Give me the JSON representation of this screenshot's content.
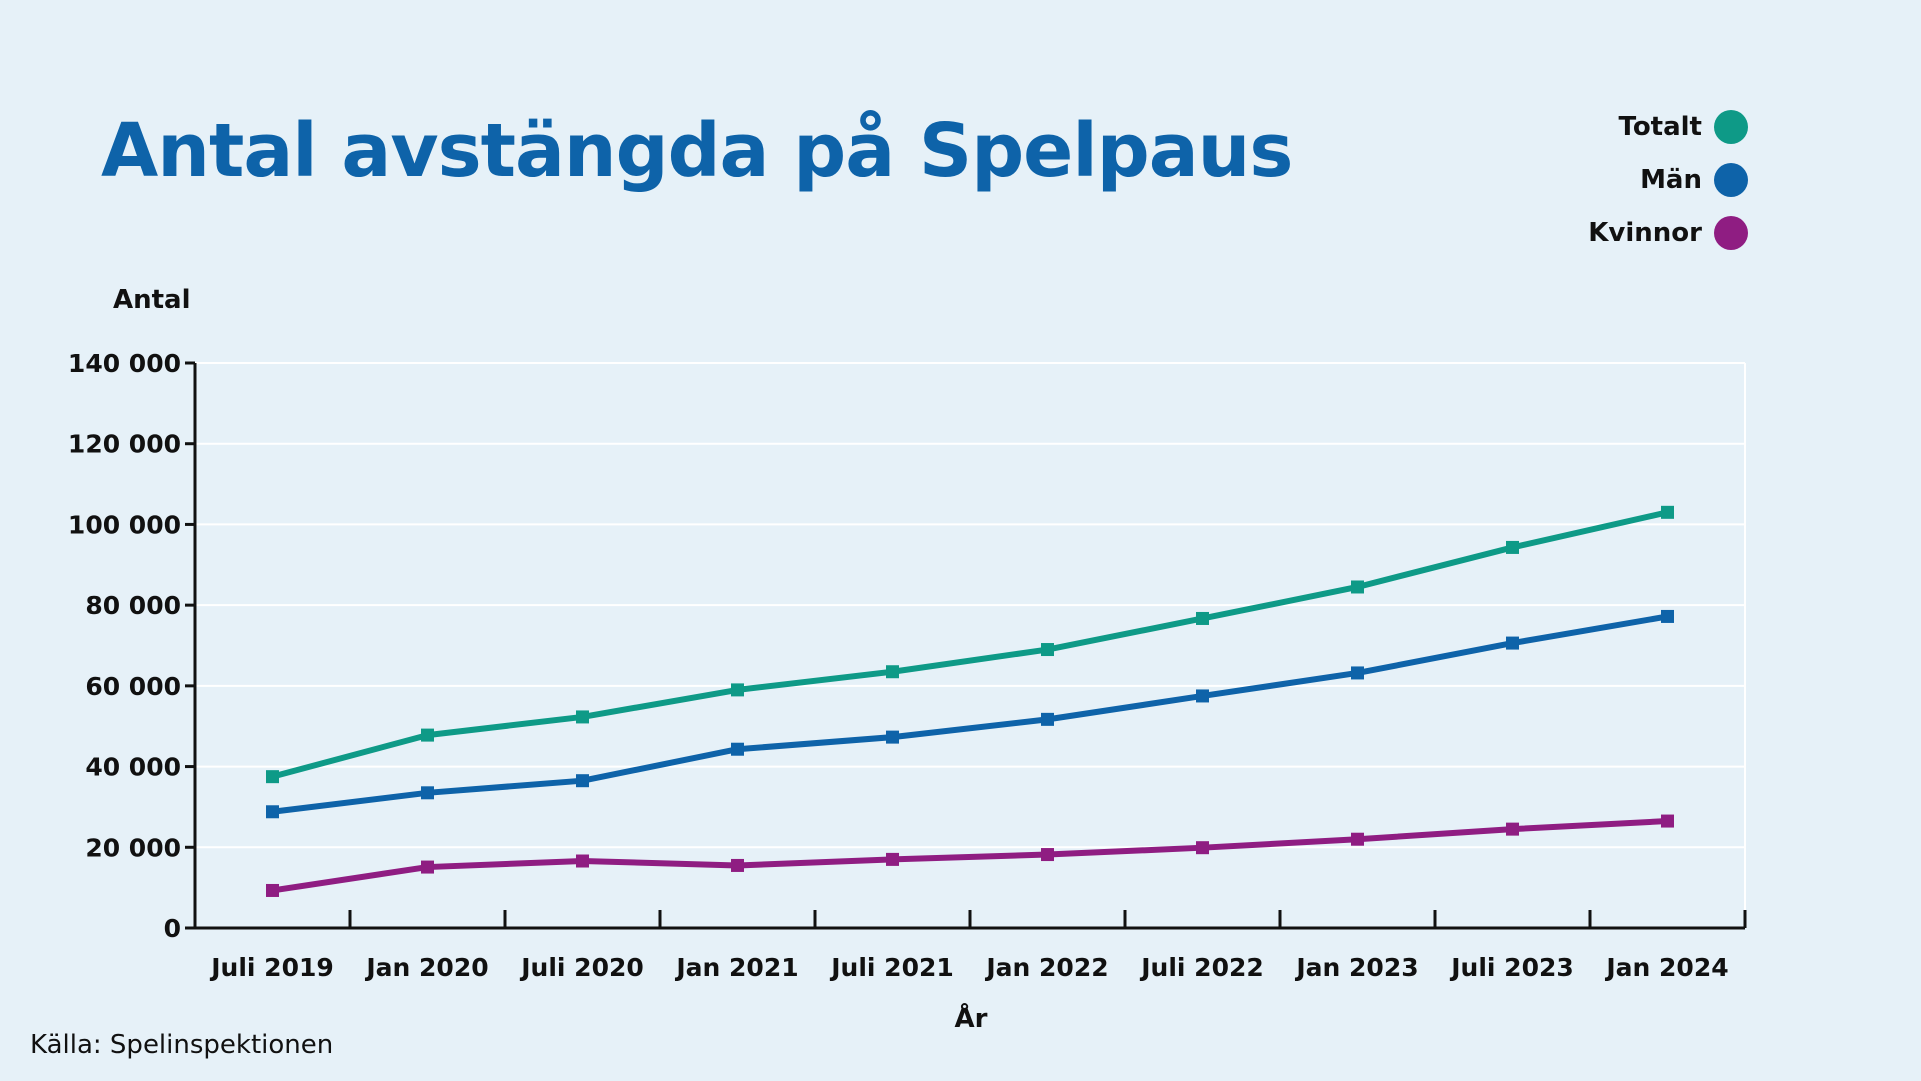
{
  "chart_data": {
    "type": "line",
    "title": "Antal avstängda på Spelpaus",
    "ylabel": "Antal",
    "xlabel": "År",
    "ylim": [
      0,
      140000
    ],
    "yticks": [
      0,
      20000,
      40000,
      60000,
      80000,
      100000,
      120000,
      140000
    ],
    "ytick_labels": [
      "0",
      "20 000",
      "40 000",
      "60 000",
      "80 000",
      "100 000",
      "120 000",
      "140 000"
    ],
    "categories": [
      "Juli 2019",
      "Jan 2020",
      "Juli 2020",
      "Jan 2021",
      "Juli 2021",
      "Jan 2022",
      "Juli 2022",
      "Jan 2023",
      "Juli 2023",
      "Jan 2024"
    ],
    "grid": true,
    "legend_position": "top-right",
    "series": [
      {
        "name": "Totalt",
        "color": "#0e9a87",
        "values": [
          37500,
          47800,
          52300,
          59000,
          63500,
          69000,
          76700,
          84500,
          94300,
          103000
        ]
      },
      {
        "name": "Män",
        "color": "#0e63a9",
        "values": [
          28800,
          33500,
          36500,
          44300,
          47300,
          51700,
          57500,
          63200,
          70600,
          77200
        ]
      },
      {
        "name": "Kvinnor",
        "color": "#8f1d82",
        "values": [
          9300,
          15100,
          16600,
          15500,
          17000,
          18200,
          19900,
          22000,
          24500,
          26500
        ]
      }
    ]
  },
  "source": "Källa: Spelinspektionen"
}
